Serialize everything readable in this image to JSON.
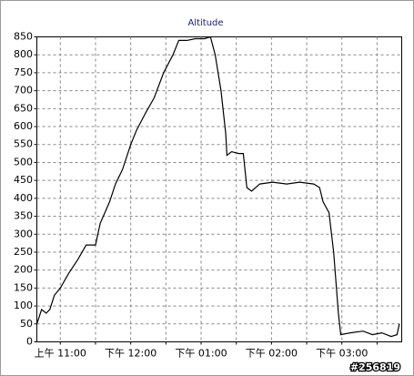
{
  "chart_data": {
    "type": "line",
    "title": "Altitude",
    "color": "#000000",
    "grid": true,
    "x": [
      640,
      644,
      648,
      651,
      655,
      660,
      667,
      675,
      682,
      690,
      694,
      702,
      707,
      713,
      720,
      725,
      733,
      740,
      748,
      756,
      761,
      768,
      775,
      783,
      788,
      792,
      797,
      801,
      802,
      806,
      812,
      816,
      819,
      823,
      830,
      841,
      853,
      864,
      876,
      881,
      884,
      889,
      893,
      897,
      899,
      907,
      918,
      926,
      934,
      942,
      947,
      949
    ],
    "values": [
      50,
      90,
      80,
      90,
      130,
      150,
      190,
      230,
      270,
      270,
      330,
      390,
      440,
      480,
      550,
      590,
      640,
      680,
      750,
      800,
      840,
      840,
      845,
      845,
      850,
      800,
      700,
      580,
      520,
      530,
      525,
      525,
      430,
      420,
      440,
      445,
      440,
      445,
      440,
      430,
      390,
      360,
      250,
      80,
      20,
      25,
      30,
      20,
      25,
      15,
      20,
      50
    ],
    "xlim": [
      640,
      951
    ],
    "xticks": [
      {
        "value": 660,
        "label": "上午 11:00"
      },
      {
        "value": 690,
        "label": null
      },
      {
        "value": 720,
        "label": "下午 12:00"
      },
      {
        "value": 750,
        "label": null
      },
      {
        "value": 780,
        "label": "下午 01:00"
      },
      {
        "value": 810,
        "label": null
      },
      {
        "value": 840,
        "label": "下午 02:00"
      },
      {
        "value": 870,
        "label": null
      },
      {
        "value": 900,
        "label": "下午 03:00"
      },
      {
        "value": 930,
        "label": null
      }
    ],
    "ylim": [
      0,
      850
    ],
    "yticks": [
      0,
      50,
      100,
      150,
      200,
      250,
      300,
      350,
      400,
      450,
      500,
      550,
      600,
      650,
      700,
      750,
      800,
      850
    ],
    "watermark": "#256819"
  }
}
